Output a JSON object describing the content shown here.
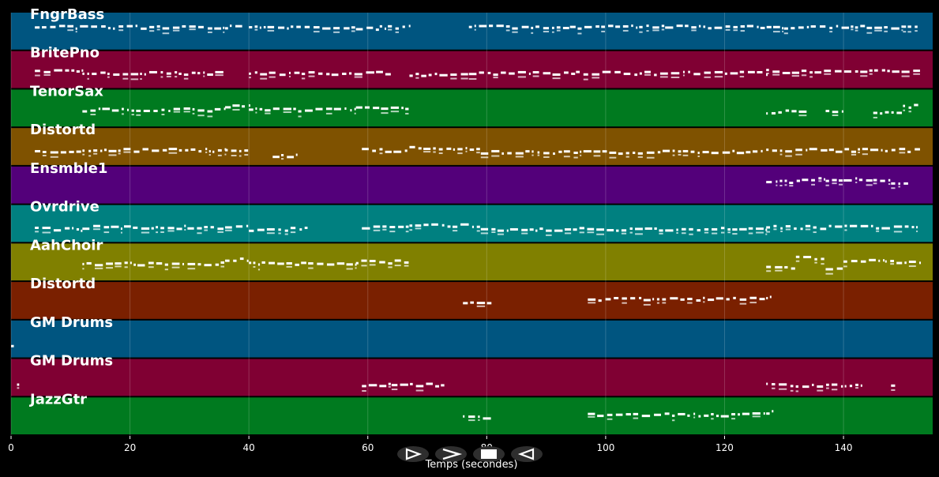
{
  "chart_data": {
    "type": "piano-roll",
    "xlabel": "Temps (secondes)",
    "xlim": [
      0,
      155
    ],
    "xticks": [
      0,
      20,
      40,
      60,
      80,
      100,
      120,
      140
    ],
    "grid": true,
    "tracks": [
      {
        "name": "FngrBass",
        "color": "#005580",
        "segments": [
          [
            4,
            36,
            0.35
          ],
          [
            36,
            39,
            0.35
          ],
          [
            40,
            58,
            0.35
          ],
          [
            58,
            62,
            0.4
          ],
          [
            62,
            67,
            0.35
          ],
          [
            77,
            94,
            0.35
          ],
          [
            94,
            110,
            0.35
          ],
          [
            110,
            130,
            0.35
          ],
          [
            130,
            150,
            0.35
          ],
          [
            150,
            153,
            0.35
          ]
        ]
      },
      {
        "name": "BritePno",
        "color": "#800033",
        "segments": [
          [
            4,
            12,
            0.5
          ],
          [
            12,
            36,
            0.55
          ],
          [
            40,
            64,
            0.55
          ],
          [
            67,
            77,
            0.6
          ],
          [
            77,
            95,
            0.55
          ],
          [
            95,
            127,
            0.55
          ],
          [
            127,
            153,
            0.5
          ]
        ]
      },
      {
        "name": "TenorSax",
        "color": "#007a1f",
        "segments": [
          [
            12,
            36,
            0.5
          ],
          [
            36,
            40,
            0.4
          ],
          [
            40,
            58,
            0.5
          ],
          [
            58,
            67,
            0.45
          ],
          [
            127,
            134,
            0.55
          ],
          [
            137,
            140,
            0.55
          ],
          [
            145,
            150,
            0.55
          ],
          [
            150,
            153,
            0.4
          ]
        ]
      },
      {
        "name": "Distortd",
        "color": "#7f5200",
        "segments": [
          [
            4,
            12,
            0.6
          ],
          [
            12,
            36,
            0.55
          ],
          [
            36,
            40,
            0.55
          ],
          [
            44,
            48,
            0.7
          ],
          [
            59,
            67,
            0.55
          ],
          [
            67,
            79,
            0.5
          ],
          [
            79,
            127,
            0.6
          ],
          [
            127,
            153,
            0.55
          ]
        ]
      },
      {
        "name": "Ensmble1",
        "color": "#53007a",
        "segments": [
          [
            127,
            133,
            0.38
          ],
          [
            133,
            137,
            0.3
          ],
          [
            137,
            140,
            0.35
          ],
          [
            140,
            145,
            0.3
          ],
          [
            145,
            148,
            0.32
          ],
          [
            148,
            151,
            0.42
          ]
        ]
      },
      {
        "name": "Ovrdrive",
        "color": "#008080",
        "segments": [
          [
            4,
            12,
            0.6
          ],
          [
            12,
            36,
            0.55
          ],
          [
            36,
            40,
            0.55
          ],
          [
            40,
            50,
            0.6
          ],
          [
            59,
            67,
            0.55
          ],
          [
            67,
            79,
            0.5
          ],
          [
            79,
            127,
            0.6
          ],
          [
            127,
            153,
            0.55
          ]
        ]
      },
      {
        "name": "AahChoir",
        "color": "#808000",
        "segments": [
          [
            12,
            36,
            0.5
          ],
          [
            36,
            40,
            0.4
          ],
          [
            40,
            58,
            0.5
          ],
          [
            58,
            67,
            0.45
          ],
          [
            127,
            132,
            0.6
          ],
          [
            132,
            137,
            0.35
          ],
          [
            137,
            140,
            0.6
          ],
          [
            140,
            147,
            0.4
          ],
          [
            147,
            153,
            0.45
          ]
        ]
      },
      {
        "name": "Distortd",
        "color": "#7a2000",
        "segments": [
          [
            76,
            81,
            0.5
          ],
          [
            97,
            127,
            0.42
          ],
          [
            127,
            128,
            0.35
          ]
        ]
      },
      {
        "name": "GM Drums",
        "color": "#005580",
        "segments": [
          [
            0,
            0.6,
            0.65
          ]
        ]
      },
      {
        "name": "GM Drums",
        "color": "#800033",
        "segments": [
          [
            1,
            1.5,
            0.65
          ],
          [
            59,
            64,
            0.65
          ],
          [
            64,
            73,
            0.65
          ],
          [
            127,
            138,
            0.65
          ],
          [
            138,
            143,
            0.65
          ],
          [
            148,
            149,
            0.7
          ]
        ]
      },
      {
        "name": "JazzGtr",
        "color": "#007a1f",
        "segments": [
          [
            76,
            81,
            0.5
          ],
          [
            97,
            127,
            0.42
          ],
          [
            127,
            128,
            0.35
          ]
        ]
      }
    ]
  },
  "controls": [
    {
      "name": "play-forward-button",
      "symbol": "play-outline-icon"
    },
    {
      "name": "next-button",
      "symbol": "chevron-right-icon"
    },
    {
      "name": "stop-button",
      "symbol": "stop-icon"
    },
    {
      "name": "play-backward-button",
      "symbol": "reverse-play-icon"
    }
  ]
}
